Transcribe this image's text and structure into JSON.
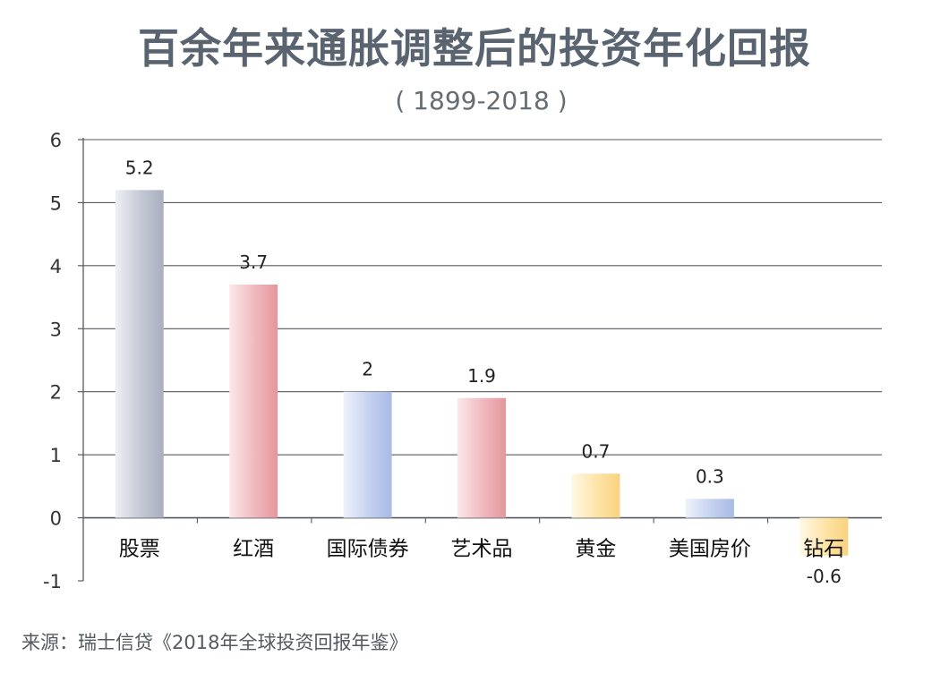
{
  "title": "百余年来通胀调整后的投资年化回报",
  "subtitle": "( 1899-2018 )",
  "source": "来源：瑞士信贷《2018年全球投资回报年鉴》",
  "chart_data": {
    "type": "bar",
    "title": "百余年来通胀调整后的投资年化回报",
    "subtitle": "( 1899-2018 )",
    "xlabel": "",
    "ylabel": "",
    "ylim": [
      -1,
      6
    ],
    "yticks": [
      -1,
      0,
      1,
      2,
      3,
      4,
      5,
      6
    ],
    "grid": true,
    "categories": [
      "股票",
      "红酒",
      "国际债券",
      "艺术品",
      "黄金",
      "美国房价",
      "钻石"
    ],
    "values": [
      5.2,
      3.7,
      2,
      1.9,
      0.7,
      0.3,
      -0.6
    ],
    "data_labels": [
      "5.2",
      "3.7",
      "2",
      "1.9",
      "0.7",
      "0.3",
      "-0.6"
    ],
    "bar_colors": [
      [
        "#eef0f4",
        "#c2c7d3",
        "#a9afbe"
      ],
      [
        "#fbe8ea",
        "#efb7bc",
        "#e4969d"
      ],
      [
        "#eef2fb",
        "#c3d0ee",
        "#a8bae6"
      ],
      [
        "#fbe8ea",
        "#efb7bc",
        "#e4969d"
      ],
      [
        "#fff8e6",
        "#fde3a4",
        "#f9d27f"
      ],
      [
        "#eef2fb",
        "#c3d0ee",
        "#a8bae6"
      ],
      [
        "#fff8e6",
        "#fde3a4",
        "#f9d27f"
      ]
    ],
    "grid_color": "#555a60",
    "axis_color": "#555a60"
  }
}
